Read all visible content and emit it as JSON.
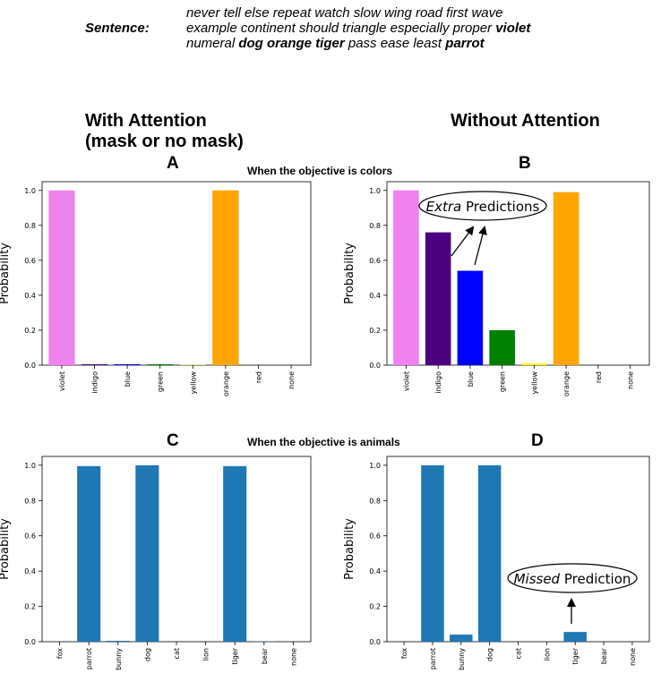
{
  "sentence": {
    "label": "Sentence:",
    "lines": [
      [
        {
          "text": "never tell else repeat watch slow wing road first wave",
          "bold": false
        }
      ],
      [
        {
          "text": "example continent should triangle especially proper ",
          "bold": false
        },
        {
          "text": "violet",
          "bold": true
        }
      ],
      [
        {
          "text": "numeral ",
          "bold": false
        },
        {
          "text": "dog orange tiger",
          "bold": true
        },
        {
          "text": " pass ease least ",
          "bold": false
        },
        {
          "text": "parrot",
          "bold": true
        }
      ]
    ]
  },
  "column_titles": {
    "left_line1": "With Attention",
    "left_line2": "(mask or no mask)",
    "right": "Without Attention"
  },
  "objectives": {
    "colors": "When the objective is colors",
    "animals": "When the objective is animals"
  },
  "callouts": {
    "extra_italic": "Extra",
    "extra_rest": " Predictions",
    "missed_italic": "Missed",
    "missed_rest": " Prediction"
  },
  "colors": {
    "default_bar": "#1f77b4",
    "violet": "#ee82ee",
    "indigo": "#4b0082",
    "blue": "#0000ff",
    "green": "#008000",
    "yellow": "#ffff00",
    "orange": "#ffa500",
    "red": "#ff0000",
    "none": "#1f77b4"
  },
  "chart_data": [
    {
      "panel": "A",
      "type": "bar",
      "title": "A",
      "ylabel": "Probability",
      "xlabel": "",
      "ylim": [
        0,
        1.05
      ],
      "yticks": [
        "0.0",
        "0.2",
        "0.4",
        "0.6",
        "0.8",
        "1.0"
      ],
      "categories": [
        "violet",
        "indigo",
        "blue",
        "green",
        "yellow",
        "orange",
        "red",
        "none"
      ],
      "values": [
        1.0,
        0.005,
        0.005,
        0.005,
        0.002,
        1.0,
        0.0,
        0.0
      ],
      "color_by_category": true
    },
    {
      "panel": "B",
      "type": "bar",
      "title": "B",
      "ylabel": "Probability",
      "xlabel": "",
      "ylim": [
        0,
        1.05
      ],
      "yticks": [
        "0.0",
        "0.2",
        "0.4",
        "0.6",
        "0.8",
        "1.0"
      ],
      "categories": [
        "violet",
        "indigo",
        "blue",
        "green",
        "yellow",
        "orange",
        "red",
        "none"
      ],
      "values": [
        1.0,
        0.76,
        0.54,
        0.2,
        0.01,
        0.99,
        0.0,
        0.0
      ],
      "color_by_category": true
    },
    {
      "panel": "C",
      "type": "bar",
      "title": "C",
      "ylabel": "Probability",
      "xlabel": "",
      "ylim": [
        0,
        1.05
      ],
      "yticks": [
        "0.0",
        "0.2",
        "0.4",
        "0.6",
        "0.8",
        "1.0"
      ],
      "categories": [
        "fox",
        "parrot",
        "bunny",
        "dog",
        "cat",
        "lion",
        "tiger",
        "bear",
        "none"
      ],
      "values": [
        0.0,
        0.995,
        0.005,
        1.0,
        0.0,
        0.0,
        0.995,
        0.002,
        0.0
      ],
      "color_by_category": false
    },
    {
      "panel": "D",
      "type": "bar",
      "title": "D",
      "ylabel": "Probability",
      "xlabel": "",
      "ylim": [
        0,
        1.05
      ],
      "yticks": [
        "0.0",
        "0.2",
        "0.4",
        "0.6",
        "0.8",
        "1.0"
      ],
      "categories": [
        "fox",
        "parrot",
        "bunny",
        "dog",
        "cat",
        "lion",
        "tiger",
        "bear",
        "none"
      ],
      "values": [
        0.0,
        1.0,
        0.04,
        1.0,
        0.0,
        0.0,
        0.055,
        0.0,
        0.0
      ],
      "color_by_category": false
    }
  ]
}
